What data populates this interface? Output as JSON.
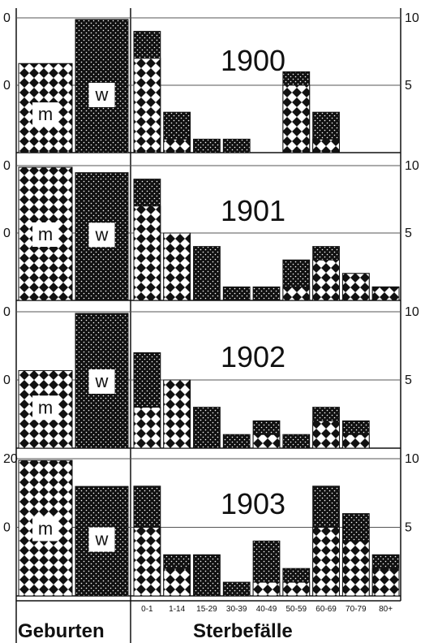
{
  "chart_data": {
    "type": "bar",
    "footer": {
      "births": "Geburten",
      "deaths": "Sterbefälle"
    },
    "sex_labels": {
      "m": "m",
      "w": "w"
    },
    "age_groups": [
      "0-1",
      "1-14",
      "15-29",
      "30-39",
      "40-49",
      "50-59",
      "60-69",
      "70-79",
      "80+"
    ],
    "colors": {
      "line": "#111111",
      "grid": "#555555",
      "fill": "#ffffff"
    },
    "grid": true,
    "panels": [
      {
        "year": "1900",
        "births_ticks": [
          "0",
          "0"
        ],
        "deaths_ticks": [
          "10",
          "5"
        ],
        "births": {
          "m": 8.5,
          "w": 12.7
        },
        "deaths_ylim": [
          0,
          10
        ],
        "deaths": {
          "total": [
            9,
            3,
            1,
            1,
            0,
            6,
            3,
            null,
            null
          ],
          "male": [
            7,
            1,
            0,
            0,
            0,
            5,
            1,
            null,
            null
          ]
        }
      },
      {
        "year": "1901",
        "births_ticks": [
          "0",
          "0"
        ],
        "deaths_ticks": [
          "10",
          "5"
        ],
        "births": {
          "m": 12.3,
          "w": 11.8
        },
        "deaths_ylim": [
          0,
          10
        ],
        "deaths": {
          "total": [
            9,
            5,
            4,
            1,
            1,
            3,
            4,
            2,
            1
          ],
          "male": [
            7,
            5,
            0,
            0,
            0,
            1,
            3,
            2,
            1
          ]
        }
      },
      {
        "year": "1902",
        "births_ticks": [
          "0",
          "0"
        ],
        "deaths_ticks": [
          "10",
          "5"
        ],
        "births": {
          "m": 6.5,
          "w": 11.3
        },
        "deaths_ylim": [
          0,
          10
        ],
        "deaths": {
          "total": [
            7,
            5,
            3,
            1,
            2,
            1,
            3,
            2,
            null
          ],
          "male": [
            3,
            5,
            0,
            0,
            1,
            0,
            2,
            1,
            null
          ]
        }
      },
      {
        "year": "1903",
        "births_ticks": [
          "20",
          "0"
        ],
        "deaths_ticks": [
          "10",
          "5"
        ],
        "births": {
          "m": 26.0,
          "w": 21.0
        },
        "deaths_ylim": [
          0,
          10
        ],
        "deaths": {
          "total": [
            8,
            3,
            3,
            1,
            4,
            2,
            8,
            6,
            3
          ],
          "male": [
            5,
            2,
            0,
            0,
            1,
            1,
            5,
            4,
            2
          ]
        }
      }
    ]
  }
}
